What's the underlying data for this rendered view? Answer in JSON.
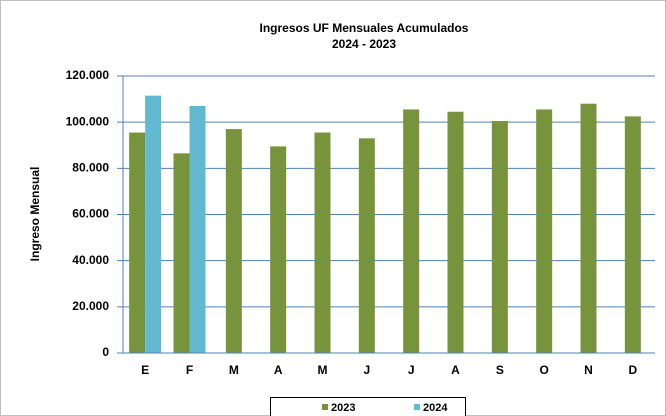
{
  "chart_data": {
    "type": "bar",
    "title": "Ingresos UF Mensuales Acumulados",
    "subtitle": "2024 - 2023",
    "y_label": "Ingreso Mensual",
    "categories": [
      "E",
      "F",
      "M",
      "A",
      "M",
      "J",
      "J",
      "A",
      "S",
      "O",
      "N",
      "D"
    ],
    "series": [
      {
        "name": "2023",
        "color": "#77933c",
        "values": [
          95500,
          86500,
          97000,
          89500,
          95500,
          93000,
          105500,
          104500,
          100500,
          105500,
          108000,
          102500
        ]
      },
      {
        "name": "2024",
        "color": "#63b8d2",
        "values": [
          111500,
          107000,
          null,
          null,
          null,
          null,
          null,
          null,
          null,
          null,
          null,
          null
        ]
      }
    ],
    "ylim": [
      0,
      120000
    ],
    "yticks": [
      0,
      {
        "value": 20000,
        "label": "20.000"
      },
      {
        "value": 40000,
        "label": "40.000"
      },
      {
        "value": 60000,
        "label": "60.000"
      },
      {
        "value": 80000,
        "label": "80.000"
      },
      {
        "value": 100000,
        "label": "100.000"
      },
      {
        "value": 120000,
        "label": "120.000"
      }
    ],
    "grid": true,
    "legend": "bottom"
  }
}
